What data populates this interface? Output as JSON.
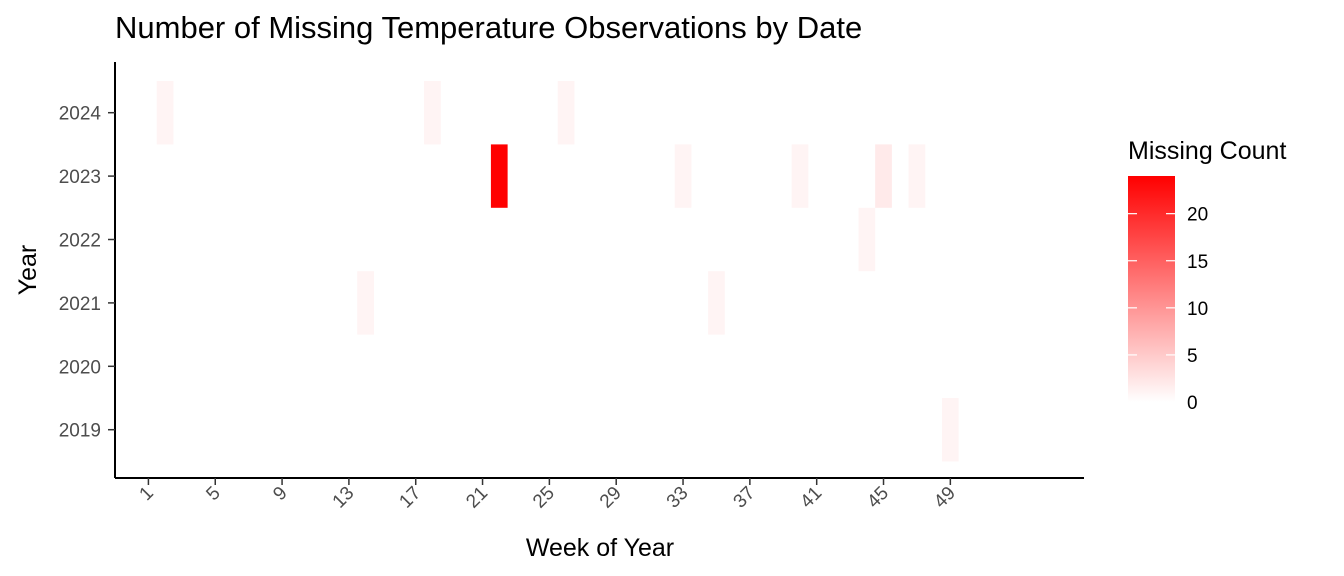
{
  "chart_data": {
    "type": "heatmap",
    "title": "Number of Missing Temperature Observations by Date",
    "xlabel": "Week of Year",
    "ylabel": "Year",
    "x_ticks": [
      1,
      5,
      9,
      13,
      17,
      21,
      25,
      29,
      33,
      37,
      41,
      45,
      49
    ],
    "x_range": [
      -1,
      57
    ],
    "y_categories": [
      2019,
      2020,
      2021,
      2022,
      2023,
      2024
    ],
    "legend": {
      "title": "Missing Count",
      "ticks": [
        0,
        5,
        10,
        15,
        20
      ],
      "range": [
        0,
        24
      ],
      "low_color": "#ffffff",
      "high_color": "#ff0000",
      "position": "right"
    },
    "cells": [
      {
        "year": 2024,
        "week": 2,
        "value": 1
      },
      {
        "year": 2024,
        "week": 18,
        "value": 1
      },
      {
        "year": 2024,
        "week": 26,
        "value": 1
      },
      {
        "year": 2023,
        "week": 22,
        "value": 24
      },
      {
        "year": 2023,
        "week": 33,
        "value": 1
      },
      {
        "year": 2023,
        "week": 40,
        "value": 1
      },
      {
        "year": 2023,
        "week": 45,
        "value": 2
      },
      {
        "year": 2023,
        "week": 47,
        "value": 1
      },
      {
        "year": 2022,
        "week": 44,
        "value": 1
      },
      {
        "year": 2021,
        "week": 14,
        "value": 1
      },
      {
        "year": 2021,
        "week": 35,
        "value": 1
      },
      {
        "year": 2019,
        "week": 49,
        "value": 1
      }
    ],
    "grid": false
  }
}
